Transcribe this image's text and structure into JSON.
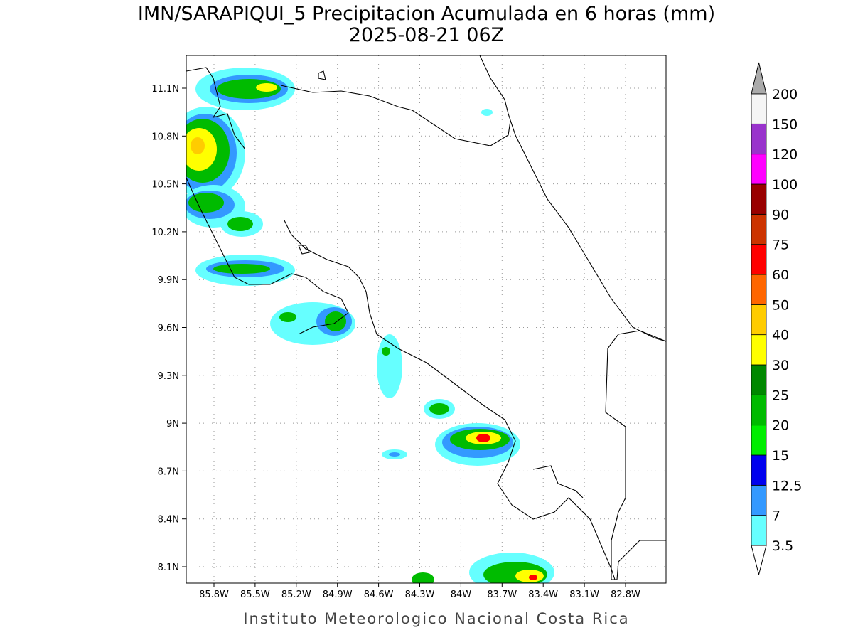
{
  "title": "IMN/SARAPIQUI_5 Precipitacion Acumulada en 6 horas (mm)",
  "subtitle": "2025-08-21 06Z",
  "footer": "Instituto Meteorologico Nacional Costa Rica",
  "lon_labels": [
    "85.8W",
    "85.5W",
    "85.2W",
    "84.9W",
    "84.6W",
    "84.3W",
    "84W",
    "83.7W",
    "83.4W",
    "83.1W",
    "82.8W"
  ],
  "lat_labels": [
    "11.1N",
    "10.8N",
    "10.5N",
    "10.2N",
    "9.9N",
    "9.6N",
    "9.3N",
    "9N",
    "8.7N",
    "8.4N",
    "8.1N"
  ],
  "colorbar": {
    "levels": [
      3.5,
      7,
      12.5,
      15,
      20,
      25,
      30,
      40,
      50,
      60,
      75,
      90,
      100,
      120,
      150,
      200
    ],
    "colors": [
      "#66ffff",
      "#3399ff",
      "#0000ee",
      "#00ee00",
      "#00bb00",
      "#008800",
      "#ffff00",
      "#ffcc00",
      "#ff6600",
      "#ff0000",
      "#cc3300",
      "#990000",
      "#ff00ff",
      "#9933cc",
      "#f5f5f5"
    ],
    "under_color": "#ffffff",
    "over_color": "#aaaaaa"
  }
}
